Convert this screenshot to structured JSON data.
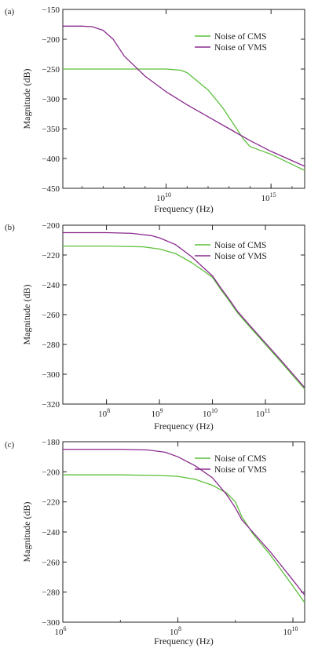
{
  "chart_data": [
    {
      "panel_label": "(a)",
      "type": "line",
      "xlabel": "Frequency (Hz)",
      "ylabel": "Magnitude (dB)",
      "xscale": "log",
      "xlim": [
        120000.0,
        4e+16
      ],
      "ylim": [
        -450,
        -150
      ],
      "xticks": [
        {
          "value": 10000000000.0,
          "base": "10",
          "exp": "10"
        },
        {
          "value": 1000000000000000.0,
          "base": "10",
          "exp": "15"
        }
      ],
      "yticks": [
        -150,
        -200,
        -250,
        -300,
        -350,
        -400,
        -450
      ],
      "yticklabels": [
        "−150",
        "−200",
        "−250",
        "−300",
        "−350",
        "−400",
        "−450"
      ],
      "legend_position": "top-right",
      "series": [
        {
          "name": "Noise of CMS",
          "color": "#5bbf3a",
          "x": [
            120000.0,
            10000000.0,
            1000000000.0,
            10000000000.0,
            50000000000.0,
            100000000000.0,
            1000000000000.0,
            5000000000000.0,
            50000000000000.0,
            100000000000000.0,
            1000000000000000.0,
            4e+16
          ],
          "y": [
            -250,
            -250,
            -250,
            -250,
            -252,
            -256,
            -285,
            -315,
            -368,
            -380,
            -393,
            -420
          ]
        },
        {
          "name": "Noise of VMS",
          "color": "#8a2a8e",
          "x": [
            120000.0,
            1000000.0,
            3000000.0,
            10000000.0,
            30000000.0,
            100000000.0,
            1000000000.0,
            10000000000.0,
            100000000000.0,
            1000000000000.0,
            10000000000000.0,
            100000000000000.0,
            1000000000000000.0,
            4e+16
          ],
          "y": [
            -178,
            -178,
            -179,
            -185,
            -200,
            -228,
            -262,
            -288,
            -310,
            -330,
            -350,
            -370,
            -388,
            -413
          ]
        }
      ]
    },
    {
      "panel_label": "(b)",
      "type": "line",
      "xlabel": "Frequency  (Hz)",
      "ylabel": "Magnitude (dB)",
      "xscale": "log",
      "xlim": [
        15000000.0,
        550000000000.0
      ],
      "ylim": [
        -320,
        -200
      ],
      "xticks": [
        {
          "value": 100000000.0,
          "base": "10",
          "exp": "8"
        },
        {
          "value": 1000000000.0,
          "base": "10",
          "exp": "9"
        },
        {
          "value": 10000000000.0,
          "base": "10",
          "exp": "10"
        },
        {
          "value": 100000000000.0,
          "base": "10",
          "exp": "11"
        }
      ],
      "yticks": [
        -200,
        -220,
        -240,
        -260,
        -280,
        -300,
        -320
      ],
      "yticklabels": [
        "−200",
        "−220",
        "−240",
        "−260",
        "−280",
        "−300",
        "−320"
      ],
      "legend_position": "top-right",
      "series": [
        {
          "name": "Noise of CMS",
          "color": "#5bbf3a",
          "x": [
            15000000.0,
            100000000.0,
            500000000.0,
            1000000000.0,
            2000000000.0,
            4000000000.0,
            7000000000.0,
            10000000000.0,
            15000000000.0,
            20000000000.0,
            30000000000.0,
            50000000000.0,
            100000000000.0,
            200000000000.0,
            550000000000.0
          ],
          "y": [
            -214,
            -214,
            -214.5,
            -216,
            -219,
            -225,
            -231,
            -235,
            -244,
            -250,
            -259,
            -268,
            -280,
            -292,
            -310
          ]
        },
        {
          "name": "Noise of VMS",
          "color": "#8a2a8e",
          "x": [
            15000000.0,
            100000000.0,
            300000000.0,
            700000000.0,
            1000000000.0,
            2000000000.0,
            4000000000.0,
            7000000000.0,
            10000000000.0,
            15000000000.0,
            20000000000.0,
            30000000000.0,
            50000000000.0,
            100000000000.0,
            200000000000.0,
            550000000000.0
          ],
          "y": [
            -205,
            -205,
            -205.5,
            -207,
            -208.5,
            -213,
            -221,
            -229,
            -234,
            -243,
            -249,
            -258,
            -267,
            -279,
            -291,
            -309
          ]
        }
      ]
    },
    {
      "panel_label": "(c)",
      "type": "line",
      "xlabel": "Frequency (Hz)",
      "ylabel": "Magnitude (dB)",
      "xscale": "log",
      "xlim": [
        1000000.0,
        16000000000.0
      ],
      "ylim": [
        -300,
        -180
      ],
      "xticks": [
        {
          "value": 1000000.0,
          "base": "10",
          "exp": "6"
        },
        {
          "value": 100000000.0,
          "base": "10",
          "exp": "8"
        },
        {
          "value": 10000000000.0,
          "base": "10",
          "exp": "10"
        }
      ],
      "yticks": [
        -180,
        -200,
        -220,
        -240,
        -260,
        -280,
        -300
      ],
      "yticklabels": [
        "−180",
        "−200",
        "−220",
        "−240",
        "−260",
        "−280",
        "−300"
      ],
      "legend_position": "top-right",
      "series": [
        {
          "name": "Noise of CMS",
          "color": "#5bbf3a",
          "x": [
            1000000.0,
            10000000.0,
            50000000.0,
            100000000.0,
            200000000.0,
            400000000.0,
            700000000.0,
            1000000000.0,
            1300000000.0,
            2000000000.0,
            4000000000.0,
            10000000000.0,
            16000000000.0
          ],
          "y": [
            -202,
            -202,
            -202.5,
            -203,
            -205,
            -209,
            -214,
            -220,
            -230,
            -241,
            -255,
            -276,
            -287
          ]
        },
        {
          "name": "Noise of VMS",
          "color": "#8a2a8e",
          "x": [
            1000000.0,
            10000000.0,
            30000000.0,
            60000000.0,
            100000000.0,
            200000000.0,
            400000000.0,
            700000000.0,
            1000000000.0,
            1300000000.0,
            2000000000.0,
            4000000000.0,
            10000000000.0,
            16000000000.0
          ],
          "y": [
            -185,
            -185,
            -185.5,
            -187,
            -190,
            -196,
            -204,
            -215,
            -224,
            -232,
            -240,
            -253,
            -272,
            -282
          ]
        }
      ]
    }
  ]
}
